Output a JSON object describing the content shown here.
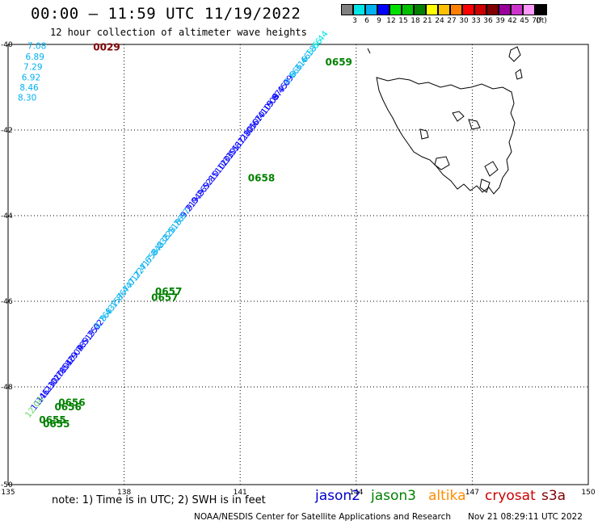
{
  "header": {
    "title": "00:00 – 11:59 UTC 11/19/2022",
    "subtitle": "12 hour collection of altimeter wave heights"
  },
  "color_scale": {
    "labels": [
      "3",
      "6",
      "9",
      "12",
      "15",
      "18",
      "21",
      "24",
      "27",
      "30",
      "33",
      "36",
      "39",
      "42",
      "45",
      "70",
      "(ft)"
    ],
    "colors": [
      "#808080",
      "#00e5e5",
      "#00b0f0",
      "#0000ff",
      "#00e000",
      "#00c000",
      "#008000",
      "#ffff00",
      "#ffc000",
      "#ff8000",
      "#ff0000",
      "#cc0000",
      "#800000",
      "#990099",
      "#cc33cc",
      "#ff99ff",
      "#000000"
    ]
  },
  "axes": {
    "lon_labels": [
      "135",
      "138",
      "141",
      "144",
      "147",
      "150"
    ],
    "lat_labels": [
      "-40",
      "-42",
      "-44",
      "-46",
      "-48",
      "-50"
    ]
  },
  "tracks": {
    "jason3_labels": [
      {
        "t": "0029",
        "lon": 137.2,
        "lat": -40.05,
        "color": "#800000"
      },
      {
        "t": "0659",
        "lon": 143.2,
        "lat": -40.4,
        "color": "#008000"
      },
      {
        "t": "0658",
        "lon": 141.2,
        "lat": -43.1,
        "color": "#008000"
      },
      {
        "t": "0657",
        "lon": 138.8,
        "lat": -45.75,
        "color": "#008000"
      },
      {
        "t": "0657",
        "lon": 138.7,
        "lat": -45.9,
        "color": "#008000"
      },
      {
        "t": "0656",
        "lon": 136.3,
        "lat": -48.35,
        "color": "#008000"
      },
      {
        "t": "0656",
        "lon": 136.2,
        "lat": -48.45,
        "color": "#008000"
      },
      {
        "t": "0655",
        "lon": 135.8,
        "lat": -48.75,
        "color": "#008000"
      },
      {
        "t": "0655",
        "lon": 135.9,
        "lat": -48.85,
        "color": "#008000"
      }
    ],
    "swh_left": [
      {
        "v": "7.08",
        "lon": 135.5,
        "lat": -40.03,
        "color": "#00b0f0"
      },
      {
        "v": "6.89",
        "lon": 135.45,
        "lat": -40.28,
        "color": "#00b0f0"
      },
      {
        "v": "7.29",
        "lon": 135.4,
        "lat": -40.52,
        "color": "#00b0f0"
      },
      {
        "v": "6.92",
        "lon": 135.35,
        "lat": -40.76,
        "color": "#00b0f0"
      },
      {
        "v": "8.46",
        "lon": 135.3,
        "lat": -41.0,
        "color": "#00b0f0"
      },
      {
        "v": "8.30",
        "lon": 135.25,
        "lat": -41.24,
        "color": "#00b0f0"
      }
    ],
    "swh_diag": [
      "5.44",
      "5.66",
      "6.18",
      "6.46",
      "8.31",
      "8.66",
      "9.09",
      "9.45",
      "9.87",
      "10.08",
      "10.15",
      "10.41",
      "10.67",
      "11.05",
      "11.28",
      "10.87",
      "10.55",
      "10.33",
      "10.12",
      "9.85",
      "9.52",
      "9.26",
      "9.04",
      "9.21",
      "8.97",
      "8.76",
      "8.51",
      "8.22",
      "8.03",
      "7.84",
      "7.65",
      "7.41",
      "7.22",
      "7.01",
      "7.44",
      "7.86",
      "8.15",
      "8.43",
      "8.76",
      "9.02",
      "9.25",
      "9.51",
      "9.78",
      "10.04",
      "10.29",
      "10.54",
      "10.78",
      "11.02",
      "11.23",
      "11.46",
      "12.04"
    ],
    "swh_bottom_label": "12.04"
  },
  "footer": {
    "note": "note:  1) Time is in UTC;  2) SWH is in feet",
    "satellites": [
      {
        "name": "jason2",
        "color": "#0000cc"
      },
      {
        "name": "jason3",
        "color": "#008000"
      },
      {
        "name": "altika",
        "color": "#ff8c00"
      },
      {
        "name": "cryosat",
        "color": "#cc0000"
      },
      {
        "name": "s3a",
        "color": "#800000"
      }
    ],
    "credit": "NOAA/NESDIS Center for Satellite Applications and Research",
    "timestamp": "Nov 21 08:29:11 UTC 2022"
  }
}
